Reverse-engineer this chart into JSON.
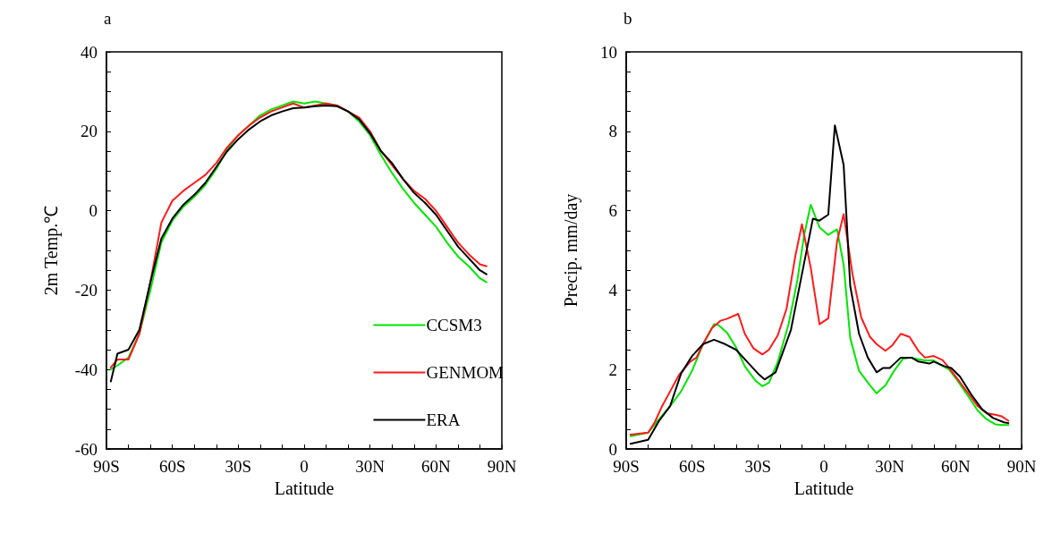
{
  "chart_data": [
    {
      "type": "line",
      "title": "a",
      "xlabel": "Latitude",
      "ylabel": "2m Temp.℃",
      "legend": "bottom right",
      "grid": false,
      "marker": "none",
      "line_style": "solid",
      "x": [
        -88,
        -85,
        -80,
        -75,
        -70,
        -65,
        -60,
        -55,
        -50,
        -45,
        -40,
        -35,
        -30,
        -25,
        -20,
        -15,
        -10,
        -5,
        0,
        5,
        10,
        15,
        20,
        25,
        30,
        35,
        40,
        45,
        50,
        55,
        60,
        65,
        70,
        75,
        80,
        83
      ],
      "xlim": [
        -90,
        90
      ],
      "xticks": [
        {
          "value": -90,
          "label": "90S"
        },
        {
          "value": -80,
          "label": null
        },
        {
          "value": -70,
          "label": null
        },
        {
          "value": -60,
          "label": "60S"
        },
        {
          "value": -50,
          "label": null
        },
        {
          "value": -40,
          "label": null
        },
        {
          "value": -30,
          "label": "30S"
        },
        {
          "value": -20,
          "label": null
        },
        {
          "value": -10,
          "label": null
        },
        {
          "value": 0,
          "label": "0"
        },
        {
          "value": 10,
          "label": null
        },
        {
          "value": 20,
          "label": null
        },
        {
          "value": 30,
          "label": "30N"
        },
        {
          "value": 40,
          "label": null
        },
        {
          "value": 50,
          "label": null
        },
        {
          "value": 60,
          "label": "60N"
        },
        {
          "value": 70,
          "label": null
        },
        {
          "value": 80,
          "label": null
        },
        {
          "value": 90,
          "label": "90N"
        }
      ],
      "ylim": [
        -60,
        40
      ],
      "yticks": [
        -60,
        {
          "value": -55,
          "label": null
        },
        {
          "value": -50,
          "label": null
        },
        {
          "value": -45,
          "label": null
        },
        -40,
        {
          "value": -35,
          "label": null
        },
        {
          "value": -30,
          "label": null
        },
        {
          "value": -25,
          "label": null
        },
        -20,
        {
          "value": -15,
          "label": null
        },
        {
          "value": -10,
          "label": null
        },
        {
          "value": -5,
          "label": null
        },
        0,
        {
          "value": 5,
          "label": null
        },
        {
          "value": 10,
          "label": null
        },
        {
          "value": 15,
          "label": null
        },
        20,
        {
          "value": 25,
          "label": null
        },
        {
          "value": 30,
          "label": null
        },
        {
          "value": 35,
          "label": null
        },
        40
      ],
      "series": [
        {
          "name": "CCSM3",
          "color": "#00e600",
          "values": [
            -40,
            -39,
            -37,
            -31,
            -20,
            -8,
            -2.5,
            1,
            3.5,
            6.5,
            10.5,
            15.5,
            19,
            21.5,
            24,
            25.5,
            26.5,
            27.5,
            27,
            27.5,
            27,
            26.5,
            25,
            22.5,
            19,
            14,
            9.5,
            5.5,
            2,
            -1,
            -4,
            -8,
            -11.5,
            -14,
            -17,
            -18
          ]
        },
        {
          "name": "GENMOM",
          "color": "#ff1a1a",
          "values": [
            -39.5,
            -37.5,
            -37.5,
            -31,
            -18,
            -3,
            2.5,
            5,
            7,
            9,
            12,
            16,
            19,
            21.5,
            23.5,
            25,
            26,
            27,
            26,
            26.5,
            27,
            26.5,
            25,
            23.5,
            20,
            15,
            11.5,
            8,
            5,
            3,
            0,
            -4,
            -8,
            -11,
            -13.5,
            -14
          ]
        },
        {
          "name": "ERA",
          "color": "#000000",
          "values": [
            -43,
            -36,
            -35,
            -30,
            -18,
            -7,
            -2,
            1.5,
            4,
            7,
            11,
            15,
            18,
            20.5,
            22.5,
            24,
            25,
            25.8,
            26,
            26.3,
            26.5,
            26.3,
            25,
            23,
            19.5,
            15,
            12,
            8,
            4.5,
            2,
            -1,
            -5,
            -9,
            -12,
            -15,
            -16
          ]
        }
      ]
    },
    {
      "type": "line",
      "title": "b",
      "xlabel": "Latitude",
      "ylabel": "Precip. mm/day",
      "grid": false,
      "marker": "none",
      "line_style": "solid",
      "xlim": [
        -90,
        90
      ],
      "xticks": [
        {
          "value": -90,
          "label": "90S"
        },
        {
          "value": -80,
          "label": null
        },
        {
          "value": -70,
          "label": null
        },
        {
          "value": -60,
          "label": "60S"
        },
        {
          "value": -50,
          "label": null
        },
        {
          "value": -40,
          "label": null
        },
        {
          "value": -30,
          "label": "30S"
        },
        {
          "value": -20,
          "label": null
        },
        {
          "value": -10,
          "label": null
        },
        {
          "value": 0,
          "label": "0"
        },
        {
          "value": 10,
          "label": null
        },
        {
          "value": 20,
          "label": null
        },
        {
          "value": 30,
          "label": "30N"
        },
        {
          "value": 40,
          "label": null
        },
        {
          "value": 50,
          "label": null
        },
        {
          "value": 60,
          "label": "60N"
        },
        {
          "value": 70,
          "label": null
        },
        {
          "value": 80,
          "label": null
        },
        {
          "value": 90,
          "label": "90N"
        }
      ],
      "ylim": [
        0,
        10
      ],
      "yticks": [
        0,
        {
          "value": 0.5,
          "label": null
        },
        {
          "value": 1,
          "label": null
        },
        {
          "value": 1.5,
          "label": null
        },
        2,
        {
          "value": 2.5,
          "label": null
        },
        {
          "value": 3,
          "label": null
        },
        {
          "value": 3.5,
          "label": null
        },
        4,
        {
          "value": 4.5,
          "label": null
        },
        {
          "value": 5,
          "label": null
        },
        {
          "value": 5.5,
          "label": null
        },
        6,
        {
          "value": 6.5,
          "label": null
        },
        {
          "value": 7,
          "label": null
        },
        {
          "value": 7.5,
          "label": null
        },
        8,
        {
          "value": 8.5,
          "label": null
        },
        {
          "value": 9,
          "label": null
        },
        {
          "value": 9.5,
          "label": null
        },
        10
      ],
      "series": [
        {
          "color": "#00e600",
          "x": [
            -88,
            -80,
            -75,
            -70,
            -65,
            -60,
            -55,
            -50,
            -48,
            -44,
            -40,
            -36,
            -31,
            -28,
            -25,
            -21,
            -16,
            -12,
            -9,
            -6,
            -2,
            2,
            6,
            9,
            12,
            16,
            21,
            24,
            28,
            32,
            36,
            39,
            42,
            46,
            50,
            53,
            57,
            61,
            66,
            70,
            74,
            78,
            81,
            84
          ],
          "values": [
            0.32,
            0.41,
            0.75,
            1.08,
            1.45,
            1.97,
            2.64,
            3.14,
            3.12,
            2.92,
            2.56,
            2.08,
            1.71,
            1.58,
            1.67,
            2.19,
            3.16,
            4.27,
            5.38,
            6.15,
            5.58,
            5.39,
            5.53,
            4.64,
            2.79,
            1.97,
            1.6,
            1.4,
            1.6,
            1.97,
            2.27,
            2.3,
            2.27,
            2.23,
            2.23,
            2.12,
            2,
            1.71,
            1.3,
            0.97,
            0.75,
            0.62,
            0.6,
            0.6
          ]
        },
        {
          "color": "#ff1a1a",
          "x": [
            -88,
            -80,
            -77,
            -74,
            -70,
            -66,
            -61,
            -58,
            -55,
            -51,
            -47,
            -44,
            -39,
            -36,
            -32,
            -28,
            -25,
            -21,
            -17,
            -13,
            -10,
            -6,
            -2,
            2,
            6,
            9,
            13,
            17,
            21,
            24,
            28,
            31,
            35,
            39,
            43,
            46,
            50,
            54,
            57,
            61,
            66,
            70,
            74,
            78,
            81,
            84
          ],
          "values": [
            0.36,
            0.41,
            0.67,
            1.04,
            1.45,
            1.86,
            2.19,
            2.3,
            2.64,
            3.04,
            3.23,
            3.28,
            3.4,
            2.9,
            2.53,
            2.38,
            2.5,
            2.86,
            3.53,
            4.86,
            5.66,
            4.57,
            3.14,
            3.29,
            5.23,
            5.91,
            4.41,
            3.31,
            2.82,
            2.64,
            2.47,
            2.6,
            2.9,
            2.82,
            2.47,
            2.3,
            2.34,
            2.24,
            2.04,
            1.75,
            1.38,
            1.08,
            0.9,
            0.86,
            0.82,
            0.71
          ]
        },
        {
          "color": "#000000",
          "x": [
            -88,
            -80,
            -75,
            -70,
            -65,
            -60,
            -55,
            -50,
            -45,
            -40,
            -35,
            -30,
            -27,
            -22,
            -15,
            -10,
            -5,
            -2,
            2,
            5,
            9,
            12,
            16,
            20,
            24,
            27,
            30,
            35,
            40,
            43,
            48,
            50,
            55,
            58,
            62,
            67,
            72,
            77,
            82,
            84
          ],
          "values": [
            0.13,
            0.23,
            0.71,
            1.08,
            1.9,
            2.34,
            2.64,
            2.75,
            2.64,
            2.5,
            2.2,
            1.9,
            1.75,
            1.93,
            3,
            4.4,
            5.8,
            5.75,
            5.9,
            8.15,
            7.15,
            4.1,
            2.9,
            2.3,
            1.93,
            2.04,
            2.04,
            2.3,
            2.3,
            2.2,
            2.15,
            2.2,
            2.08,
            2.04,
            1.82,
            1.38,
            1,
            0.78,
            0.67,
            0.65
          ]
        }
      ]
    }
  ]
}
